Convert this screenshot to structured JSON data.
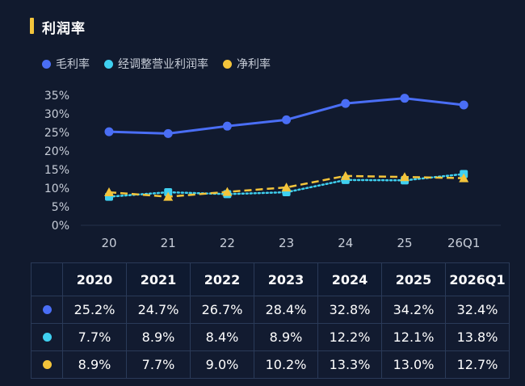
{
  "title": "利润率",
  "colors": {
    "gross": "#4a6ef5",
    "adjusted": "#3fd0f0",
    "net": "#f3c43b",
    "axis_text": "#c7cdd8",
    "grid": "#22304a"
  },
  "chart_data": {
    "type": "line",
    "title": "利润率",
    "categories": [
      "20",
      "21",
      "22",
      "23",
      "24",
      "25",
      "26Q1"
    ],
    "series": [
      {
        "name": "毛利率",
        "values": [
          25.2,
          24.7,
          26.7,
          28.4,
          32.8,
          34.2,
          32.4
        ],
        "style": "solid",
        "marker": "circle"
      },
      {
        "name": "经调整营业利润率",
        "values": [
          7.7,
          8.9,
          8.4,
          8.9,
          12.2,
          12.1,
          13.8
        ],
        "style": "dotted",
        "marker": "square"
      },
      {
        "name": "净利率",
        "values": [
          8.9,
          7.7,
          9.0,
          10.2,
          13.3,
          13.0,
          12.7
        ],
        "style": "dashed",
        "marker": "triangle"
      }
    ],
    "yticks": [
      "0%",
      "5%",
      "10%",
      "15%",
      "20%",
      "25%",
      "30%",
      "35%"
    ],
    "ylim": [
      0,
      35
    ],
    "legend_position": "top-left",
    "grid": false
  },
  "table": {
    "headers": [
      "2020",
      "2021",
      "2022",
      "2023",
      "2024",
      "2025",
      "2026Q1"
    ],
    "rows": [
      {
        "series": "gross",
        "values": [
          "25.2%",
          "24.7%",
          "26.7%",
          "28.4%",
          "32.8%",
          "34.2%",
          "32.4%"
        ]
      },
      {
        "series": "adjusted",
        "values": [
          "7.7%",
          "8.9%",
          "8.4%",
          "8.9%",
          "12.2%",
          "12.1%",
          "13.8%"
        ]
      },
      {
        "series": "net",
        "values": [
          "8.9%",
          "7.7%",
          "9.0%",
          "10.2%",
          "13.3%",
          "13.0%",
          "12.7%"
        ]
      }
    ]
  }
}
